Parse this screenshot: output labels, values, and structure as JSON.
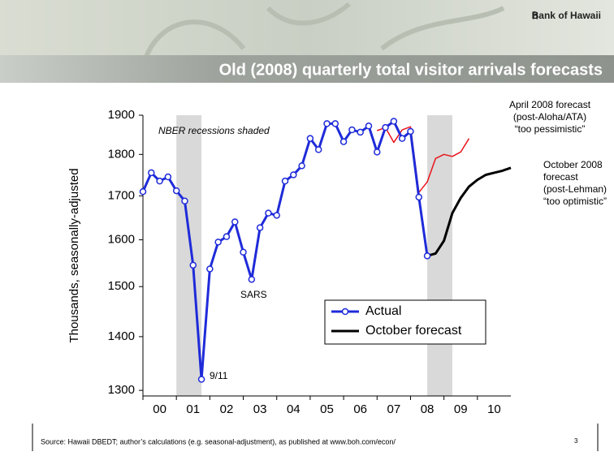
{
  "header": {
    "brand": "Bank of Hawaii",
    "title": "Old (2008) quarterly total visitor arrivals forecasts"
  },
  "chart_data": {
    "type": "line",
    "ylabel": "Thousands, seasonally-adjusted",
    "log_scale": true,
    "xlim": [
      2000,
      2011
    ],
    "ylim": [
      1290,
      1900
    ],
    "yticks": [
      1300,
      1400,
      1500,
      1600,
      1700,
      1800,
      1900
    ],
    "xticks": [
      {
        "value": 2000,
        "label": "00"
      },
      {
        "value": 2001,
        "label": "01"
      },
      {
        "value": 2002,
        "label": "02"
      },
      {
        "value": 2003,
        "label": "03"
      },
      {
        "value": 2004,
        "label": "04"
      },
      {
        "value": 2005,
        "label": "05"
      },
      {
        "value": 2006,
        "label": "06"
      },
      {
        "value": 2007,
        "label": "07"
      },
      {
        "value": 2008,
        "label": "08"
      },
      {
        "value": 2009,
        "label": "09"
      },
      {
        "value": 2010,
        "label": "10"
      }
    ],
    "recessions": [
      [
        2001,
        2001.75
      ],
      [
        2008.5,
        2009.25
      ]
    ],
    "series": [
      {
        "name": "Actual",
        "color": "#1f2bd9",
        "markers": true,
        "x": [
          2000,
          2000.25,
          2000.5,
          2000.75,
          2001,
          2001.25,
          2001.5,
          2001.75,
          2002,
          2002.25,
          2002.5,
          2002.75,
          2003,
          2003.25,
          2003.5,
          2003.75,
          2004,
          2004.25,
          2004.5,
          2004.75,
          2005,
          2005.25,
          2005.5,
          2005.75,
          2006,
          2006.25,
          2006.5,
          2006.75,
          2007,
          2007.25,
          2007.5,
          2007.75,
          2008,
          2008.25,
          2008.5
        ],
        "values": [
          1710,
          1755,
          1735,
          1745,
          1712,
          1688,
          1545,
          1320,
          1537,
          1595,
          1607,
          1640,
          1573,
          1515,
          1627,
          1660,
          1655,
          1735,
          1750,
          1772,
          1840,
          1812,
          1878,
          1878,
          1832,
          1862,
          1856,
          1872,
          1806,
          1868,
          1884,
          1840,
          1858,
          1697,
          1565
        ]
      },
      {
        "name": "October forecast",
        "color": "#000000",
        "markers": false,
        "x": [
          2008.5,
          2008.75,
          2009,
          2009.25,
          2009.5,
          2009.75,
          2010,
          2010.25,
          2010.5,
          2010.75,
          2011
        ],
        "values": [
          1565,
          1570,
          1598,
          1660,
          1695,
          1722,
          1738,
          1750,
          1755,
          1760,
          1767
        ]
      },
      {
        "color": "#e8141b",
        "markers": false,
        "x": [
          2007,
          2007.25,
          2007.5,
          2007.75,
          2008,
          2008.25,
          2008.5,
          2008.75,
          2009,
          2009.25,
          2009.5,
          2009.75
        ],
        "values": [
          1860,
          1868,
          1830,
          1862,
          1870,
          1708,
          1733,
          1790,
          1800,
          1795,
          1806,
          1840
        ]
      }
    ],
    "annotations": [
      {
        "lines": [
          "NBER recessions shaded"
        ]
      },
      {
        "lines": [
          "9/11"
        ]
      },
      {
        "lines": [
          "SARS"
        ]
      },
      {
        "lines": [
          "April 2008 forecast",
          "(post-Aloha/ATA)",
          "“too pessimistic”"
        ]
      },
      {
        "lines": [
          "October 2008",
          "forecast",
          "(post-Lehman)",
          "“too optimistic”"
        ]
      }
    ]
  },
  "footer": {
    "source": "Source:  Hawaii DBEDT; author’s calculations (e.g. seasonal-adjustment), as published at www.boh.com/econ/",
    "page": "3"
  }
}
